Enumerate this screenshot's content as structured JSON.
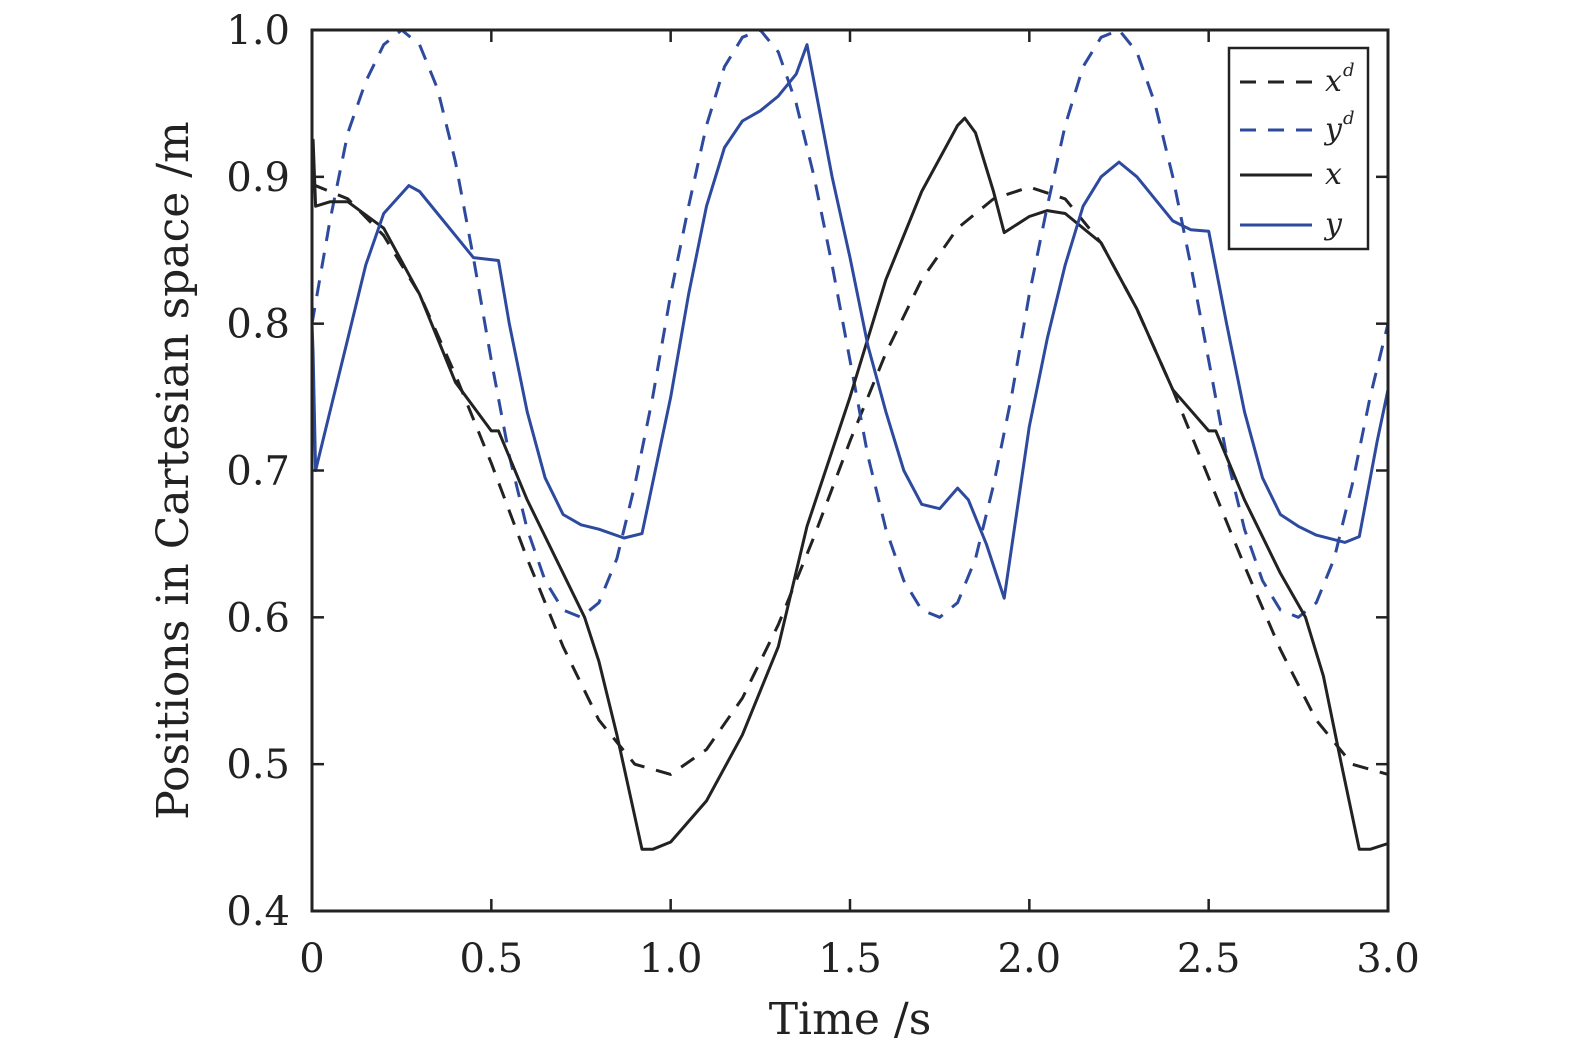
{
  "chart_data": {
    "type": "line",
    "xlabel": "Time /s",
    "ylabel": "Positions in Cartesian space /m",
    "xlim": [
      0,
      3.0
    ],
    "ylim": [
      0.4,
      1.0
    ],
    "xticks": [
      0,
      0.5,
      1.0,
      1.5,
      2.0,
      2.5,
      3.0
    ],
    "xtick_labels": [
      "0",
      "0.5",
      "1.0",
      "1.5",
      "2.0",
      "2.5",
      "3.0"
    ],
    "yticks": [
      0.4,
      0.5,
      0.6,
      0.7,
      0.8,
      0.9,
      1.0
    ],
    "ytick_labels": [
      "0.4",
      "0.5",
      "0.6",
      "0.7",
      "0.8",
      "0.9",
      "1.0"
    ],
    "grid": false,
    "legend_position": "top-right",
    "series": [
      {
        "name": "x",
        "sup": "d",
        "style": "dashed",
        "color": "#222222",
        "points": [
          [
            0,
            0.895
          ],
          [
            0.1,
            0.885
          ],
          [
            0.2,
            0.86
          ],
          [
            0.3,
            0.82
          ],
          [
            0.4,
            0.765
          ],
          [
            0.5,
            0.705
          ],
          [
            0.6,
            0.64
          ],
          [
            0.7,
            0.58
          ],
          [
            0.8,
            0.53
          ],
          [
            0.9,
            0.5
          ],
          [
            1.0,
            0.493
          ],
          [
            1.1,
            0.51
          ],
          [
            1.2,
            0.545
          ],
          [
            1.3,
            0.595
          ],
          [
            1.4,
            0.655
          ],
          [
            1.5,
            0.72
          ],
          [
            1.6,
            0.78
          ],
          [
            1.7,
            0.83
          ],
          [
            1.8,
            0.865
          ],
          [
            1.9,
            0.885
          ],
          [
            2.0,
            0.893
          ],
          [
            2.1,
            0.885
          ],
          [
            2.2,
            0.855
          ],
          [
            2.3,
            0.81
          ],
          [
            2.4,
            0.755
          ],
          [
            2.5,
            0.695
          ],
          [
            2.6,
            0.635
          ],
          [
            2.7,
            0.578
          ],
          [
            2.8,
            0.53
          ],
          [
            2.9,
            0.5
          ],
          [
            3.0,
            0.493
          ]
        ]
      },
      {
        "name": "y",
        "sup": "d",
        "style": "dashed",
        "color": "#2e4a9e",
        "points": [
          [
            0,
            0.8
          ],
          [
            0.05,
            0.87
          ],
          [
            0.1,
            0.93
          ],
          [
            0.15,
            0.965
          ],
          [
            0.2,
            0.99
          ],
          [
            0.25,
            1.0
          ],
          [
            0.3,
            0.99
          ],
          [
            0.35,
            0.96
          ],
          [
            0.4,
            0.91
          ],
          [
            0.45,
            0.845
          ],
          [
            0.5,
            0.775
          ],
          [
            0.55,
            0.71
          ],
          [
            0.6,
            0.66
          ],
          [
            0.65,
            0.625
          ],
          [
            0.7,
            0.605
          ],
          [
            0.75,
            0.6
          ],
          [
            0.8,
            0.61
          ],
          [
            0.85,
            0.64
          ],
          [
            0.9,
            0.69
          ],
          [
            0.95,
            0.75
          ],
          [
            1.0,
            0.82
          ],
          [
            1.05,
            0.88
          ],
          [
            1.1,
            0.935
          ],
          [
            1.15,
            0.975
          ],
          [
            1.2,
            0.995
          ],
          [
            1.25,
            1.0
          ],
          [
            1.3,
            0.985
          ],
          [
            1.35,
            0.95
          ],
          [
            1.4,
            0.9
          ],
          [
            1.45,
            0.84
          ],
          [
            1.5,
            0.775
          ],
          [
            1.55,
            0.71
          ],
          [
            1.6,
            0.66
          ],
          [
            1.65,
            0.625
          ],
          [
            1.7,
            0.605
          ],
          [
            1.75,
            0.6
          ],
          [
            1.8,
            0.61
          ],
          [
            1.85,
            0.64
          ],
          [
            1.9,
            0.69
          ],
          [
            1.95,
            0.75
          ],
          [
            2.0,
            0.82
          ],
          [
            2.05,
            0.88
          ],
          [
            2.1,
            0.935
          ],
          [
            2.15,
            0.975
          ],
          [
            2.2,
            0.995
          ],
          [
            2.25,
            1.0
          ],
          [
            2.3,
            0.985
          ],
          [
            2.35,
            0.95
          ],
          [
            2.4,
            0.9
          ],
          [
            2.45,
            0.84
          ],
          [
            2.5,
            0.775
          ],
          [
            2.55,
            0.71
          ],
          [
            2.6,
            0.66
          ],
          [
            2.65,
            0.625
          ],
          [
            2.7,
            0.605
          ],
          [
            2.75,
            0.6
          ],
          [
            2.8,
            0.61
          ],
          [
            2.85,
            0.64
          ],
          [
            2.9,
            0.69
          ],
          [
            2.95,
            0.75
          ],
          [
            3.0,
            0.8
          ]
        ]
      },
      {
        "name": "x",
        "sup": "",
        "style": "solid",
        "color": "#222222",
        "points": [
          [
            0,
            0.895
          ],
          [
            0.003,
            0.925
          ],
          [
            0.01,
            0.88
          ],
          [
            0.05,
            0.883
          ],
          [
            0.1,
            0.883
          ],
          [
            0.2,
            0.865
          ],
          [
            0.3,
            0.82
          ],
          [
            0.4,
            0.76
          ],
          [
            0.5,
            0.727
          ],
          [
            0.52,
            0.727
          ],
          [
            0.6,
            0.68
          ],
          [
            0.7,
            0.63
          ],
          [
            0.76,
            0.6
          ],
          [
            0.8,
            0.57
          ],
          [
            0.85,
            0.52
          ],
          [
            0.92,
            0.442
          ],
          [
            0.95,
            0.442
          ],
          [
            1.0,
            0.447
          ],
          [
            1.1,
            0.475
          ],
          [
            1.2,
            0.52
          ],
          [
            1.3,
            0.58
          ],
          [
            1.38,
            0.662
          ],
          [
            1.5,
            0.75
          ],
          [
            1.6,
            0.83
          ],
          [
            1.7,
            0.89
          ],
          [
            1.8,
            0.935
          ],
          [
            1.82,
            0.94
          ],
          [
            1.85,
            0.93
          ],
          [
            1.9,
            0.89
          ],
          [
            1.93,
            0.862
          ],
          [
            2.0,
            0.873
          ],
          [
            2.05,
            0.877
          ],
          [
            2.1,
            0.875
          ],
          [
            2.2,
            0.855
          ],
          [
            2.3,
            0.81
          ],
          [
            2.4,
            0.755
          ],
          [
            2.5,
            0.727
          ],
          [
            2.52,
            0.727
          ],
          [
            2.6,
            0.68
          ],
          [
            2.7,
            0.63
          ],
          [
            2.77,
            0.6
          ],
          [
            2.82,
            0.56
          ],
          [
            2.87,
            0.5
          ],
          [
            2.92,
            0.442
          ],
          [
            2.95,
            0.442
          ],
          [
            3.0,
            0.446
          ]
        ]
      },
      {
        "name": "y",
        "sup": "",
        "style": "solid",
        "color": "#2e4a9e",
        "points": [
          [
            0,
            0.8
          ],
          [
            0.003,
            0.78
          ],
          [
            0.01,
            0.7
          ],
          [
            0.05,
            0.74
          ],
          [
            0.1,
            0.79
          ],
          [
            0.15,
            0.84
          ],
          [
            0.2,
            0.875
          ],
          [
            0.27,
            0.894
          ],
          [
            0.3,
            0.89
          ],
          [
            0.35,
            0.875
          ],
          [
            0.4,
            0.86
          ],
          [
            0.45,
            0.845
          ],
          [
            0.52,
            0.843
          ],
          [
            0.55,
            0.8
          ],
          [
            0.6,
            0.74
          ],
          [
            0.65,
            0.695
          ],
          [
            0.7,
            0.67
          ],
          [
            0.75,
            0.663
          ],
          [
            0.8,
            0.66
          ],
          [
            0.87,
            0.654
          ],
          [
            0.92,
            0.657
          ],
          [
            1.0,
            0.75
          ],
          [
            1.05,
            0.82
          ],
          [
            1.1,
            0.88
          ],
          [
            1.15,
            0.92
          ],
          [
            1.2,
            0.938
          ],
          [
            1.25,
            0.945
          ],
          [
            1.3,
            0.955
          ],
          [
            1.35,
            0.97
          ],
          [
            1.38,
            0.99
          ],
          [
            1.45,
            0.9
          ],
          [
            1.5,
            0.845
          ],
          [
            1.55,
            0.785
          ],
          [
            1.6,
            0.74
          ],
          [
            1.65,
            0.7
          ],
          [
            1.7,
            0.677
          ],
          [
            1.75,
            0.674
          ],
          [
            1.8,
            0.688
          ],
          [
            1.83,
            0.68
          ],
          [
            1.88,
            0.65
          ],
          [
            1.93,
            0.613
          ],
          [
            2.0,
            0.73
          ],
          [
            2.05,
            0.79
          ],
          [
            2.1,
            0.84
          ],
          [
            2.15,
            0.88
          ],
          [
            2.2,
            0.9
          ],
          [
            2.25,
            0.91
          ],
          [
            2.3,
            0.9
          ],
          [
            2.35,
            0.885
          ],
          [
            2.4,
            0.87
          ],
          [
            2.45,
            0.864
          ],
          [
            2.5,
            0.863
          ],
          [
            2.55,
            0.8
          ],
          [
            2.6,
            0.74
          ],
          [
            2.65,
            0.695
          ],
          [
            2.7,
            0.67
          ],
          [
            2.75,
            0.662
          ],
          [
            2.8,
            0.656
          ],
          [
            2.88,
            0.651
          ],
          [
            2.92,
            0.655
          ],
          [
            2.97,
            0.72
          ],
          [
            3.0,
            0.755
          ]
        ]
      }
    ]
  }
}
